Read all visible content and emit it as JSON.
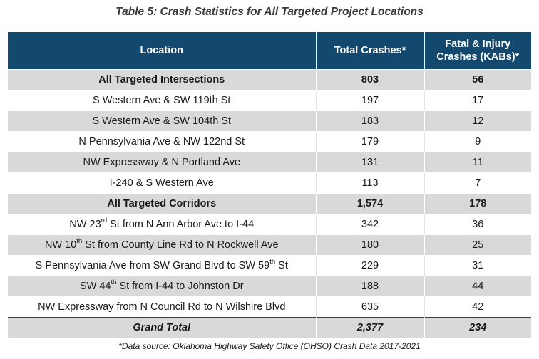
{
  "title": "Table 5: Crash Statistics for All Targeted Project Locations",
  "header": {
    "location": "Location",
    "total": "Total Crashes*",
    "kab_line1": "Fatal & Injury",
    "kab_line2": "Crashes (KABs)*"
  },
  "rows": [
    {
      "location": "All Targeted Intersections",
      "total": "803",
      "kab": "56"
    },
    {
      "location": "S Western Ave & SW 119th St",
      "total": "197",
      "kab": "17"
    },
    {
      "location": "S Western Ave & SW 104th St",
      "total": "183",
      "kab": "12"
    },
    {
      "location": "N Pennsylvania Ave & NW 122nd St",
      "total": "179",
      "kab": "9"
    },
    {
      "location": "NW Expressway & N Portland Ave",
      "total": "131",
      "kab": "11"
    },
    {
      "location": "I-240 & S Western Ave",
      "total": "113",
      "kab": "7"
    },
    {
      "location": "All Targeted Corridors",
      "total": "1,574",
      "kab": "178"
    },
    {
      "loc_a": "NW 23",
      "loc_sup": "rd",
      "loc_b": " St from N Ann Arbor Ave to I-44",
      "total": "342",
      "kab": "36"
    },
    {
      "loc_a": "NW 10",
      "loc_sup": "th",
      "loc_b": " St from County Line Rd to N Rockwell Ave",
      "total": "180",
      "kab": "25"
    },
    {
      "loc_a": "S Pennsylvania Ave from SW Grand Blvd to SW 59",
      "loc_sup": "th",
      "loc_b": " St",
      "total": "229",
      "kab": "31"
    },
    {
      "loc_a": "SW 44",
      "loc_sup": "th",
      "loc_b": " St from I-44 to Johnston Dr",
      "total": "188",
      "kab": "44"
    },
    {
      "location": "NW Expressway from N Council Rd to N Wilshire Blvd",
      "total": "635",
      "kab": "42"
    },
    {
      "location": "Grand Total",
      "total": "2,377",
      "kab": "234"
    }
  ],
  "source": "*Data source: Oklahoma Highway Safety Office (OHSO) Crash Data 2017-2021"
}
